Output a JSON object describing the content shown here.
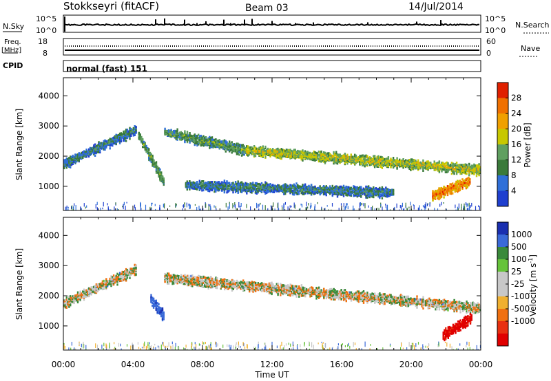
{
  "header": {
    "station": "Stokkseyri (fitACF)",
    "beam": "Beam 03",
    "date": "14/Jul/2014"
  },
  "noise_panel": {
    "left_label": "N.Sky",
    "left_ticks": [
      "10^5",
      "10^0"
    ],
    "right_ticks": [
      "10^5",
      "10^0"
    ],
    "right_label": "N.Search"
  },
  "freq_panel": {
    "left_label_line1": "Freq.",
    "left_label_line2": "[MHz]",
    "left_ticks": [
      "18",
      "8"
    ],
    "right_ticks": [
      "60",
      "0"
    ],
    "right_label": "Nave"
  },
  "cpid_panel": {
    "label": "CPID",
    "mode_text": "normal (fast) 151"
  },
  "colors": {
    "power": [
      "#1f3fcf",
      "#2f6fd8",
      "#3a7a3a",
      "#5f9f5f",
      "#c8c800",
      "#f0a000",
      "#f07000",
      "#e02000"
    ],
    "velocity": [
      "#1a2fb0",
      "#3a6ad8",
      "#3a8a3a",
      "#66c33a",
      "#c8c8c8",
      "#c8c8c8",
      "#f0b030",
      "#f07010",
      "#e83010",
      "#e00000"
    ]
  },
  "chart_data": [
    {
      "type": "heatmap",
      "quantity": "Power",
      "x": {
        "label": "",
        "ticks": [
          "00:00",
          "04:00",
          "08:00",
          "12:00",
          "16:00",
          "20:00",
          "00:00"
        ],
        "range_hours": [
          0,
          24
        ]
      },
      "y": {
        "label": "Slant Range [km]",
        "ticks": [
          1000,
          2000,
          3000,
          4000
        ],
        "range": [
          200,
          4600
        ]
      },
      "colorbar": {
        "label": "Power [dB]",
        "ticks": [
          4,
          8,
          12,
          16,
          20,
          24,
          28
        ]
      },
      "echo_bands": [
        {
          "t0": 0.0,
          "t1": 4.2,
          "r_start": 1750,
          "r_end": 2900,
          "level": 10
        },
        {
          "t0": 4.3,
          "t1": 5.8,
          "r_start": 2700,
          "r_end": 1100,
          "level": 14
        },
        {
          "t0": 5.8,
          "t1": 10.5,
          "r_start": 2800,
          "r_end": 2200,
          "level": 13
        },
        {
          "t0": 10.5,
          "t1": 24.0,
          "r_start": 2200,
          "r_end": 1550,
          "level": 18
        },
        {
          "t0": 7.0,
          "t1": 19.0,
          "r_start": 1050,
          "r_end": 800,
          "level": 10
        },
        {
          "t0": 21.2,
          "t1": 23.4,
          "r_start": 700,
          "r_end": 1200,
          "level": 26
        }
      ]
    },
    {
      "type": "heatmap",
      "quantity": "Velocity",
      "x": {
        "label": "Time UT",
        "ticks": [
          "00:00",
          "04:00",
          "08:00",
          "12:00",
          "16:00",
          "20:00",
          "00:00"
        ],
        "range_hours": [
          0,
          24
        ]
      },
      "y": {
        "label": "Slant Range [km]",
        "ticks": [
          1000,
          2000,
          3000,
          4000
        ],
        "range": [
          200,
          4600
        ]
      },
      "colorbar": {
        "label": "Velocity [m s^-1]",
        "ticks": [
          1000,
          500,
          100,
          25,
          -25,
          -100,
          -500,
          -1000
        ]
      },
      "echo_bands": [
        {
          "t0": 0.0,
          "t1": 4.2,
          "r_start": 1750,
          "r_end": 2900,
          "velocity": 0
        },
        {
          "t0": 5.0,
          "t1": 5.8,
          "r_start": 1900,
          "r_end": 1300,
          "velocity": 600
        },
        {
          "t0": 5.8,
          "t1": 24.0,
          "r_start": 2600,
          "r_end": 1600,
          "velocity": 0
        },
        {
          "t0": 21.8,
          "t1": 23.5,
          "r_start": 700,
          "r_end": 1300,
          "velocity": -800
        }
      ]
    }
  ]
}
